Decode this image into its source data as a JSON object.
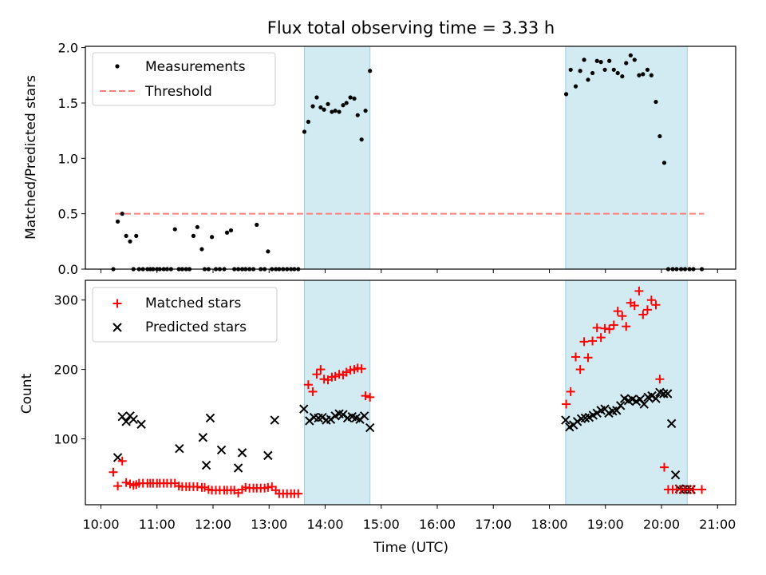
{
  "figure": {
    "title": "Flux total observing time = 3.33 h"
  },
  "colors": {
    "band": "#add8e6",
    "threshold": "#ff7f7f",
    "matched": "#ff0000",
    "predicted": "#000000",
    "measurement": "#000000"
  },
  "chart_data": [
    {
      "type": "scatter",
      "ylabel": "Matched/Predicted stars",
      "xlim": [
        10.0,
        21.0
      ],
      "ylim": [
        0.0,
        2.0
      ],
      "yticks": [
        "0.0",
        "0.5",
        "1.0",
        "1.5",
        "2.0"
      ],
      "legend": {
        "placement": "top-left",
        "entries": [
          "Measurements",
          "Threshold"
        ]
      },
      "shaded_intervals": [
        [
          13.63,
          14.8
        ],
        [
          18.29,
          20.46
        ]
      ],
      "threshold": {
        "name": "Threshold",
        "y": 0.5,
        "x": [
          10.25,
          20.76
        ]
      },
      "series": [
        {
          "name": "Measurements",
          "x": [
            10.22,
            10.3,
            10.38,
            10.45,
            10.52,
            10.58,
            10.63,
            10.68,
            10.75,
            10.83,
            10.88,
            10.93,
            11.0,
            11.05,
            11.12,
            11.18,
            11.25,
            11.32,
            11.39,
            11.45,
            11.52,
            11.58,
            11.65,
            11.72,
            11.8,
            11.85,
            11.92,
            11.98,
            12.05,
            12.12,
            12.2,
            12.25,
            12.32,
            12.38,
            12.45,
            12.52,
            12.58,
            12.65,
            12.72,
            12.78,
            12.85,
            12.92,
            12.98,
            13.05,
            13.12,
            13.18,
            13.25,
            13.32,
            13.39,
            13.45,
            13.52,
            13.63,
            13.7,
            13.78,
            13.85,
            13.92,
            13.98,
            14.05,
            14.12,
            14.18,
            14.25,
            14.32,
            14.38,
            14.45,
            14.52,
            14.58,
            14.65,
            14.72,
            14.8,
            18.3,
            18.38,
            18.47,
            18.55,
            18.62,
            18.69,
            18.77,
            18.85,
            18.92,
            18.99,
            19.07,
            19.15,
            19.22,
            19.3,
            19.37,
            19.45,
            19.52,
            19.6,
            19.67,
            19.75,
            19.82,
            19.9,
            19.97,
            20.05,
            20.12,
            20.2,
            20.27,
            20.35,
            20.42,
            20.5,
            20.57,
            20.72
          ],
          "y": [
            0.0,
            0.43,
            0.5,
            0.3,
            0.25,
            0.0,
            0.3,
            0.0,
            0.0,
            0.0,
            0.0,
            0.0,
            0.0,
            0.0,
            0.0,
            0.0,
            0.0,
            0.36,
            0.0,
            0.0,
            0.0,
            0.0,
            0.3,
            0.38,
            0.18,
            0.0,
            0.0,
            0.29,
            0.0,
            0.0,
            0.0,
            0.33,
            0.35,
            0.0,
            0.0,
            0.0,
            0.0,
            0.0,
            0.0,
            0.4,
            0.0,
            0.0,
            0.16,
            0.0,
            0.0,
            0.0,
            0.0,
            0.0,
            0.0,
            0.0,
            0.0,
            1.24,
            1.33,
            1.47,
            1.55,
            1.46,
            1.44,
            1.49,
            1.42,
            1.43,
            1.42,
            1.48,
            1.5,
            1.55,
            1.54,
            1.39,
            1.17,
            1.43,
            1.79,
            1.58,
            1.8,
            1.65,
            1.79,
            1.89,
            1.71,
            1.77,
            1.88,
            1.87,
            1.8,
            1.88,
            1.8,
            1.77,
            1.74,
            1.86,
            1.93,
            1.89,
            1.75,
            1.76,
            1.8,
            1.75,
            1.51,
            1.2,
            0.96,
            0.0,
            0.0,
            0.0,
            0.0,
            0.0,
            0.0,
            0.0,
            0.0
          ]
        }
      ]
    },
    {
      "type": "scatter",
      "xlabel": "Time (UTC)",
      "ylabel": "Count",
      "xlim": [
        10.0,
        21.0
      ],
      "ylim": [
        5,
        330
      ],
      "xticks": [
        "10:00",
        "11:00",
        "12:00",
        "13:00",
        "14:00",
        "15:00",
        "16:00",
        "17:00",
        "18:00",
        "19:00",
        "20:00",
        "21:00"
      ],
      "yticks": [
        "100",
        "200",
        "300"
      ],
      "legend": {
        "placement": "top-left",
        "entries": [
          "Matched stars",
          "Predicted stars"
        ]
      },
      "shaded_intervals": [
        [
          13.63,
          14.8
        ],
        [
          18.29,
          20.46
        ]
      ],
      "series": [
        {
          "name": "Matched stars",
          "marker": "plus",
          "x": [
            10.22,
            10.3,
            10.38,
            10.45,
            10.52,
            10.58,
            10.63,
            10.68,
            10.75,
            10.83,
            10.88,
            10.93,
            11.0,
            11.05,
            11.12,
            11.18,
            11.25,
            11.32,
            11.39,
            11.45,
            11.52,
            11.58,
            11.65,
            11.72,
            11.8,
            11.85,
            11.92,
            11.98,
            12.05,
            12.12,
            12.2,
            12.25,
            12.32,
            12.38,
            12.45,
            12.52,
            12.58,
            12.65,
            12.72,
            12.78,
            12.85,
            12.92,
            12.98,
            13.05,
            13.12,
            13.18,
            13.25,
            13.32,
            13.39,
            13.45,
            13.52,
            13.7,
            13.78,
            13.85,
            13.92,
            13.98,
            14.05,
            14.12,
            14.18,
            14.25,
            14.32,
            14.38,
            14.45,
            14.52,
            14.58,
            14.65,
            14.72,
            14.8,
            18.3,
            18.38,
            18.47,
            18.55,
            18.62,
            18.69,
            18.77,
            18.85,
            18.92,
            18.99,
            19.07,
            19.15,
            19.22,
            19.3,
            19.37,
            19.45,
            19.52,
            19.6,
            19.67,
            19.75,
            19.82,
            19.9,
            19.97,
            20.05,
            20.12,
            20.2,
            20.27,
            20.35,
            20.42,
            20.5,
            20.57,
            20.72
          ],
          "y": [
            52,
            32,
            68,
            37,
            35,
            33,
            34,
            36,
            36,
            36,
            36,
            36,
            36,
            36,
            36,
            36,
            36,
            36,
            32,
            31,
            31,
            31,
            31,
            31,
            30,
            30,
            27,
            26,
            26,
            26,
            26,
            26,
            26,
            26,
            22,
            27,
            30,
            29,
            29,
            29,
            29,
            29,
            30,
            31,
            26,
            21,
            21,
            21,
            21,
            21,
            21,
            178,
            168,
            193,
            200,
            186,
            185,
            189,
            190,
            193,
            192,
            196,
            199,
            200,
            202,
            201,
            162,
            160,
            150,
            168,
            218,
            200,
            240,
            217,
            241,
            260,
            246,
            259,
            258,
            264,
            284,
            277,
            262,
            296,
            292,
            313,
            279,
            286,
            300,
            293,
            186,
            59,
            27,
            27,
            27,
            27,
            27,
            27,
            27,
            27
          ]
        },
        {
          "name": "Predicted stars",
          "marker": "x",
          "x": [
            10.3,
            10.38,
            10.45,
            10.52,
            10.58,
            10.72,
            11.4,
            11.82,
            11.88,
            11.95,
            12.15,
            12.45,
            12.52,
            12.98,
            13.1,
            13.62,
            13.72,
            13.8,
            13.88,
            13.95,
            14.02,
            14.1,
            14.18,
            14.25,
            14.32,
            14.4,
            14.48,
            14.55,
            14.62,
            14.7,
            14.8,
            18.29,
            18.36,
            18.43,
            18.5,
            18.57,
            18.64,
            18.71,
            18.78,
            18.85,
            18.92,
            18.99,
            19.06,
            19.13,
            19.2,
            19.27,
            19.34,
            19.41,
            19.48,
            19.55,
            19.62,
            19.69,
            19.76,
            19.83,
            19.9,
            19.97,
            20.04,
            20.11,
            20.18,
            20.25,
            20.32,
            20.39,
            20.46,
            20.53
          ],
          "y": [
            73,
            132,
            125,
            133,
            128,
            121,
            86,
            102,
            62,
            130,
            84,
            58,
            80,
            76,
            127,
            143,
            126,
            131,
            130,
            131,
            127,
            128,
            133,
            136,
            135,
            130,
            132,
            130,
            128,
            133,
            116,
            127,
            117,
            120,
            125,
            129,
            130,
            131,
            134,
            137,
            141,
            143,
            137,
            140,
            141,
            148,
            158,
            155,
            157,
            154,
            157,
            150,
            160,
            162,
            158,
            167,
            165,
            165,
            122,
            48,
            28,
            27,
            27,
            27
          ]
        }
      ]
    }
  ]
}
